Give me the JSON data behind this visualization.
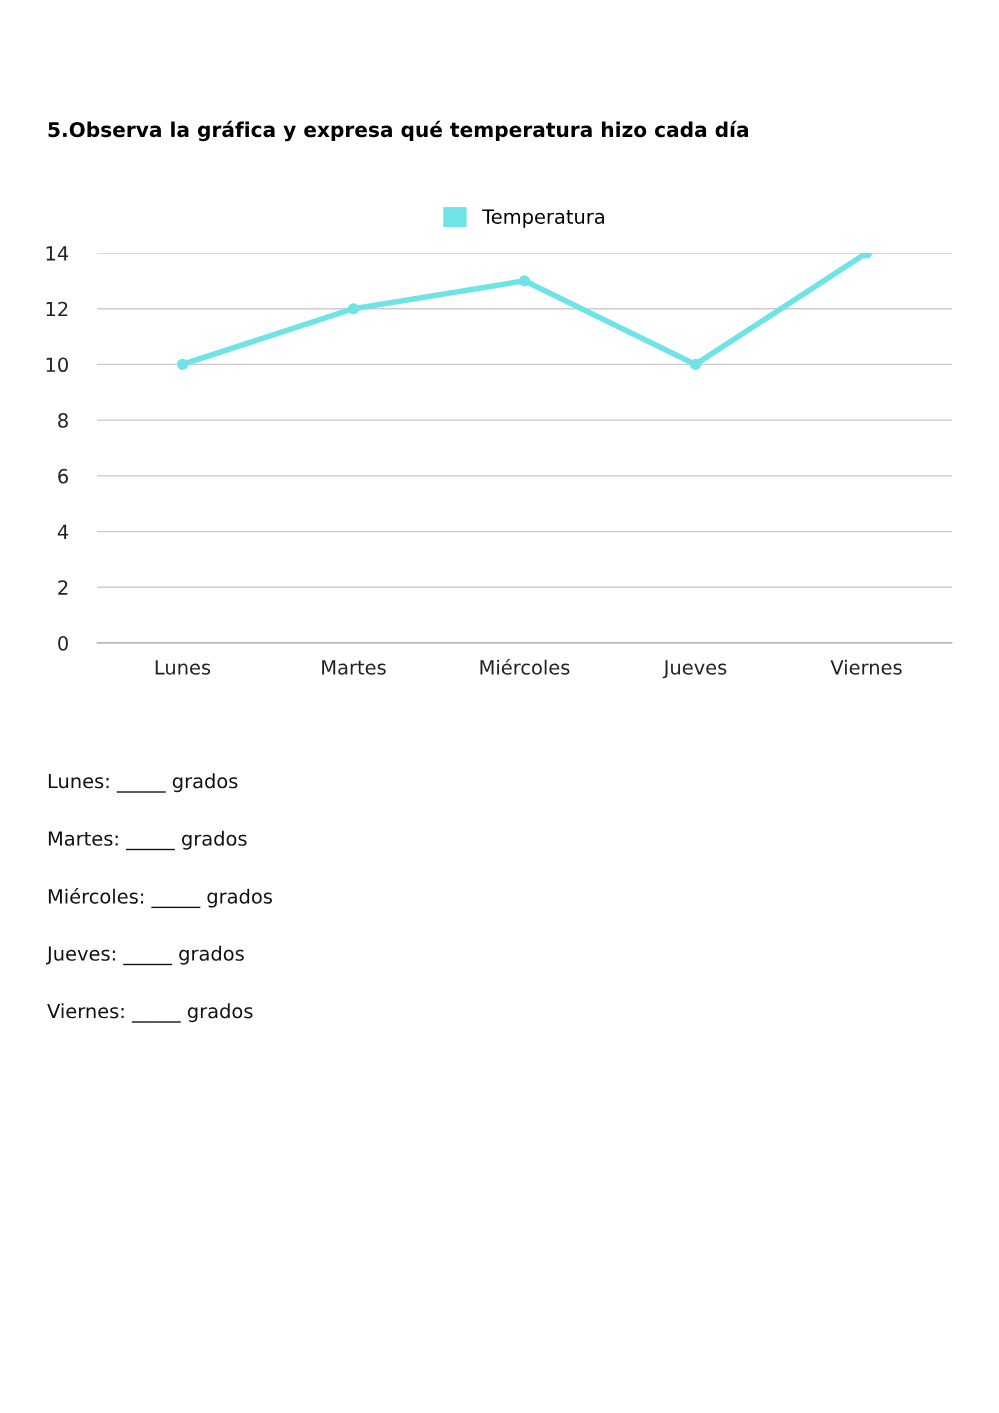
{
  "chart_data": {
    "type": "line",
    "title": "5.Observa la gráfica y expresa qué temperatura hizo cada día",
    "categories": [
      "Lunes",
      "Martes",
      "Miércoles",
      "Jueves",
      "Viernes"
    ],
    "series": [
      {
        "name": "Temperatura",
        "color": "#6ee3e8",
        "values": [
          10,
          12,
          13,
          10,
          14
        ]
      }
    ],
    "ylim": [
      0,
      14
    ],
    "yticks": [
      0,
      2,
      4,
      6,
      8,
      10,
      12,
      14
    ],
    "grid": "y",
    "legend": "top",
    "marker": "circle",
    "line_style": "solid",
    "annotations": [
      "Lunes: _____ grados",
      "Martes: _____ grados",
      "Miércoles: _____ grados",
      "Jueves: _____ grados",
      "Viernes: _____ grados"
    ]
  }
}
